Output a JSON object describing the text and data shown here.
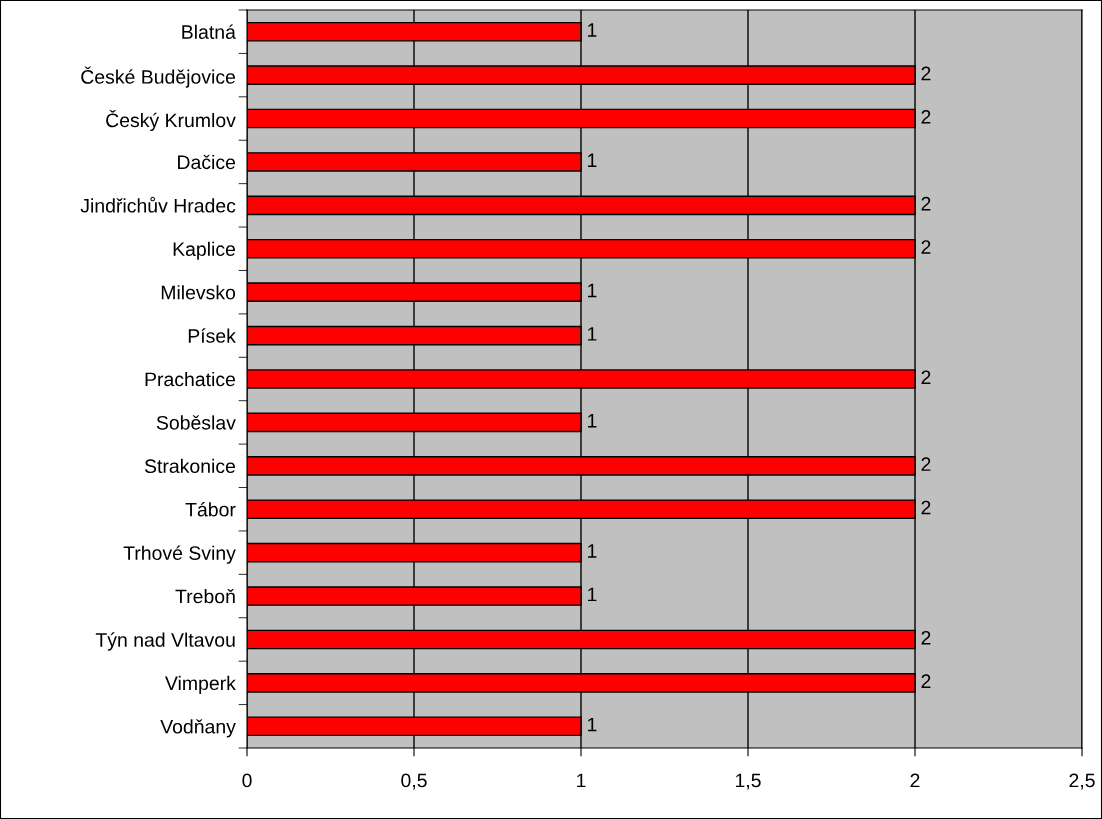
{
  "chart_data": {
    "type": "bar",
    "orientation": "horizontal",
    "categories": [
      "Blatná",
      "České Budějovice",
      "Český Krumlov",
      "Dačice",
      "Jindřichův Hradec",
      "Kaplice",
      "Milevsko",
      "Písek",
      "Prachatice",
      "Soběslav",
      "Strakonice",
      "Tábor",
      "Trhové Sviny",
      "Treboň",
      "Týn nad Vltavou",
      "Vimperk",
      "Vodňany"
    ],
    "values": [
      1,
      2,
      2,
      1,
      2,
      2,
      1,
      1,
      2,
      1,
      2,
      2,
      1,
      1,
      2,
      2,
      1
    ],
    "color": "#ff0000",
    "xlim": [
      0,
      2.5
    ],
    "xticks": [
      0,
      {
        "value": 0.5,
        "label": "0,5"
      },
      1,
      {
        "value": 1.5,
        "label": "1,5"
      },
      2,
      {
        "value": 2.5,
        "label": "2,5"
      }
    ],
    "grid": "x",
    "data_labels": true,
    "legend": false
  }
}
